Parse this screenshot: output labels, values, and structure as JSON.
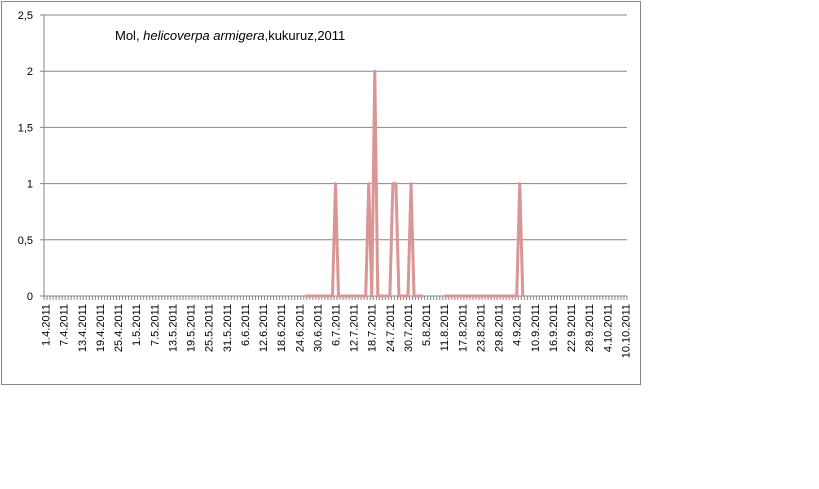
{
  "chart_data": {
    "type": "line",
    "title": [
      "Mol, ",
      "helicoverpa armigera",
      ",kukuruz,2011"
    ],
    "categories": [
      "1.4.2011",
      null,
      null,
      null,
      null,
      null,
      "7.4.2011",
      null,
      null,
      null,
      null,
      null,
      "13.4.2011",
      null,
      null,
      null,
      null,
      null,
      "19.4.2011",
      null,
      null,
      null,
      null,
      null,
      "25.4.2011",
      null,
      null,
      null,
      null,
      null,
      "1.5.2011",
      null,
      null,
      null,
      null,
      null,
      "7.5.2011",
      null,
      null,
      null,
      null,
      null,
      "13.5.2011",
      null,
      null,
      null,
      null,
      null,
      "19.5.2011",
      null,
      null,
      null,
      null,
      null,
      "25.5.2011",
      null,
      null,
      null,
      null,
      null,
      "31.5.2011",
      null,
      null,
      null,
      null,
      null,
      "6.6.2011",
      null,
      null,
      null,
      null,
      null,
      "12.6.2011",
      null,
      null,
      null,
      null,
      null,
      "18.6.2011",
      null,
      null,
      null,
      null,
      null,
      "24.6.2011",
      null,
      null,
      null,
      null,
      null,
      "30.6.2011",
      null,
      null,
      null,
      null,
      null,
      "6.7.2011",
      null,
      null,
      null,
      null,
      null,
      "12.7.2011",
      null,
      null,
      null,
      null,
      null,
      "18.7.2011",
      null,
      null,
      null,
      null,
      null,
      "24.7.2011",
      null,
      null,
      null,
      null,
      null,
      "30.7.2011",
      null,
      null,
      null,
      null,
      null,
      "5.8.2011",
      null,
      null,
      null,
      null,
      null,
      "11.8.2011",
      null,
      null,
      null,
      null,
      null,
      "17.8.2011",
      null,
      null,
      null,
      null,
      null,
      "23.8.2011",
      null,
      null,
      null,
      null,
      null,
      "29.8.2011",
      null,
      null,
      null,
      null,
      null,
      "4.9.2011",
      null,
      null,
      null,
      null,
      null,
      "10.9.2011",
      null,
      null,
      null,
      null,
      null,
      "16.9.2011",
      null,
      null,
      null,
      null,
      null,
      "22.9.2011",
      null,
      null,
      null,
      null,
      null,
      "28.9.2011",
      null,
      null,
      null,
      null,
      null,
      "4.10.2011",
      null,
      null,
      null,
      null,
      null,
      "10.10.2011"
    ],
    "values": [
      null,
      null,
      null,
      null,
      null,
      null,
      null,
      null,
      null,
      null,
      null,
      null,
      null,
      null,
      null,
      null,
      null,
      null,
      null,
      null,
      null,
      null,
      null,
      null,
      null,
      null,
      null,
      null,
      null,
      null,
      null,
      null,
      null,
      null,
      null,
      null,
      null,
      null,
      null,
      null,
      null,
      null,
      null,
      null,
      null,
      null,
      null,
      null,
      null,
      null,
      null,
      null,
      null,
      null,
      null,
      null,
      null,
      null,
      null,
      null,
      null,
      null,
      null,
      null,
      null,
      null,
      null,
      null,
      null,
      null,
      null,
      null,
      null,
      null,
      null,
      null,
      null,
      null,
      null,
      null,
      null,
      null,
      null,
      null,
      null,
      null,
      0,
      0,
      0,
      0,
      0,
      0,
      0,
      0,
      0,
      0,
      1,
      0,
      0,
      0,
      0,
      0,
      0,
      0,
      0,
      0,
      0,
      1,
      0,
      2,
      0,
      0,
      0,
      0,
      0,
      1,
      1,
      0,
      0,
      0,
      0,
      1,
      0,
      0,
      0,
      0,
      null,
      null,
      null,
      null,
      null,
      null,
      0,
      0,
      0,
      0,
      0,
      0,
      0,
      0,
      0,
      0,
      0,
      0,
      0,
      0,
      0,
      0,
      0,
      0,
      0,
      0,
      0,
      0,
      0,
      0,
      0,
      1,
      0,
      null,
      null,
      null,
      null,
      null,
      null,
      null,
      null,
      null,
      null,
      null,
      null,
      null,
      null,
      null,
      null,
      null,
      null,
      null,
      null,
      null,
      null,
      null,
      null,
      null,
      null,
      null,
      null,
      null,
      null,
      null,
      null,
      null,
      null
    ],
    "color": "#d99694",
    "ylim": [
      0,
      2.5
    ],
    "yticks": [
      0,
      {
        "value": 0.5,
        "label": "0,5"
      },
      1,
      {
        "value": 1.5,
        "label": "1,5"
      },
      2,
      {
        "value": 2.5,
        "label": "2,5"
      }
    ],
    "grid": true
  }
}
